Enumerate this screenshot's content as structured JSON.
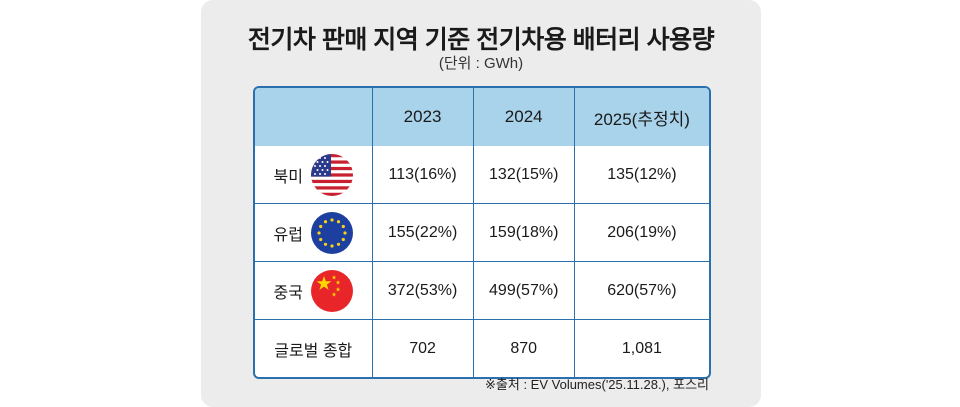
{
  "title": "전기차 판매 지역 기준 전기차용 배터리 사용량",
  "unit": "(단위 : GWh)",
  "table": {
    "headers": [
      "",
      "2023",
      "2024",
      "2025(추정치)"
    ],
    "rows": [
      {
        "region": "북미",
        "flag_icon": "us-flag-icon",
        "values": [
          "113(16%)",
          "132(15%)",
          "135(12%)"
        ]
      },
      {
        "region": "유럽",
        "flag_icon": "eu-flag-icon",
        "values": [
          "155(22%)",
          "159(18%)",
          "206(19%)"
        ]
      },
      {
        "region": "중국",
        "flag_icon": "china-flag-icon",
        "values": [
          "372(53%)",
          "499(57%)",
          "620(57%)"
        ]
      },
      {
        "region": "글로벌 종합",
        "values": [
          "702",
          "870",
          "1,081"
        ]
      }
    ]
  },
  "source": "※출처 : EV Volumes('25.11.28.), 포스리",
  "colors": {
    "header_bg": "#a9d3ea",
    "border": "#2a6fae",
    "card_bg": "#ececec"
  }
}
